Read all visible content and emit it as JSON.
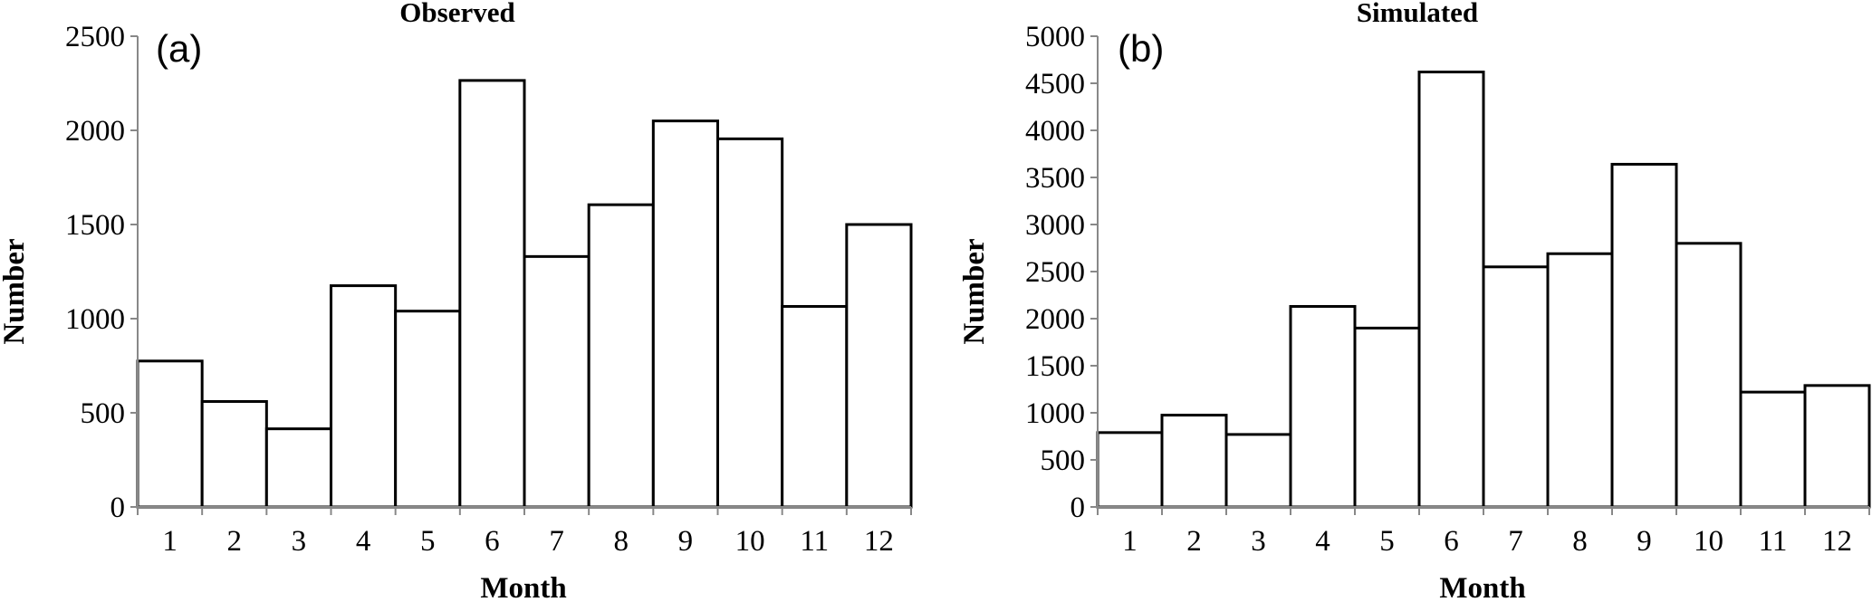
{
  "chart_data": [
    {
      "type": "bar",
      "panel": "(a)",
      "title": "Observed",
      "xlabel": "Month",
      "ylabel": "Number",
      "categories": [
        "1",
        "2",
        "3",
        "4",
        "5",
        "6",
        "7",
        "8",
        "9",
        "10",
        "11",
        "12"
      ],
      "values": [
        775,
        560,
        415,
        1175,
        1040,
        2265,
        1330,
        1605,
        2050,
        1955,
        1065,
        1500
      ],
      "ylim": [
        0,
        2500
      ],
      "yticks": [
        "0",
        "500",
        "1000",
        "1500",
        "2000",
        "2500"
      ],
      "grid": false,
      "bar_fill": "#ffffff",
      "bar_stroke": "#000000"
    },
    {
      "type": "bar",
      "panel": "(b)",
      "title": "Simulated",
      "xlabel": "Month",
      "ylabel": "Number",
      "categories": [
        "1",
        "2",
        "3",
        "4",
        "5",
        "6",
        "7",
        "8",
        "9",
        "10",
        "11",
        "12"
      ],
      "values": [
        790,
        975,
        770,
        2130,
        1900,
        4620,
        2550,
        2690,
        3640,
        2800,
        1220,
        1290
      ],
      "ylim": [
        0,
        5000
      ],
      "yticks": [
        "0",
        "500",
        "1000",
        "1500",
        "2000",
        "2500",
        "3000",
        "3500",
        "4000",
        "4500",
        "5000"
      ],
      "grid": false,
      "bar_fill": "#ffffff",
      "bar_stroke": "#000000"
    }
  ]
}
